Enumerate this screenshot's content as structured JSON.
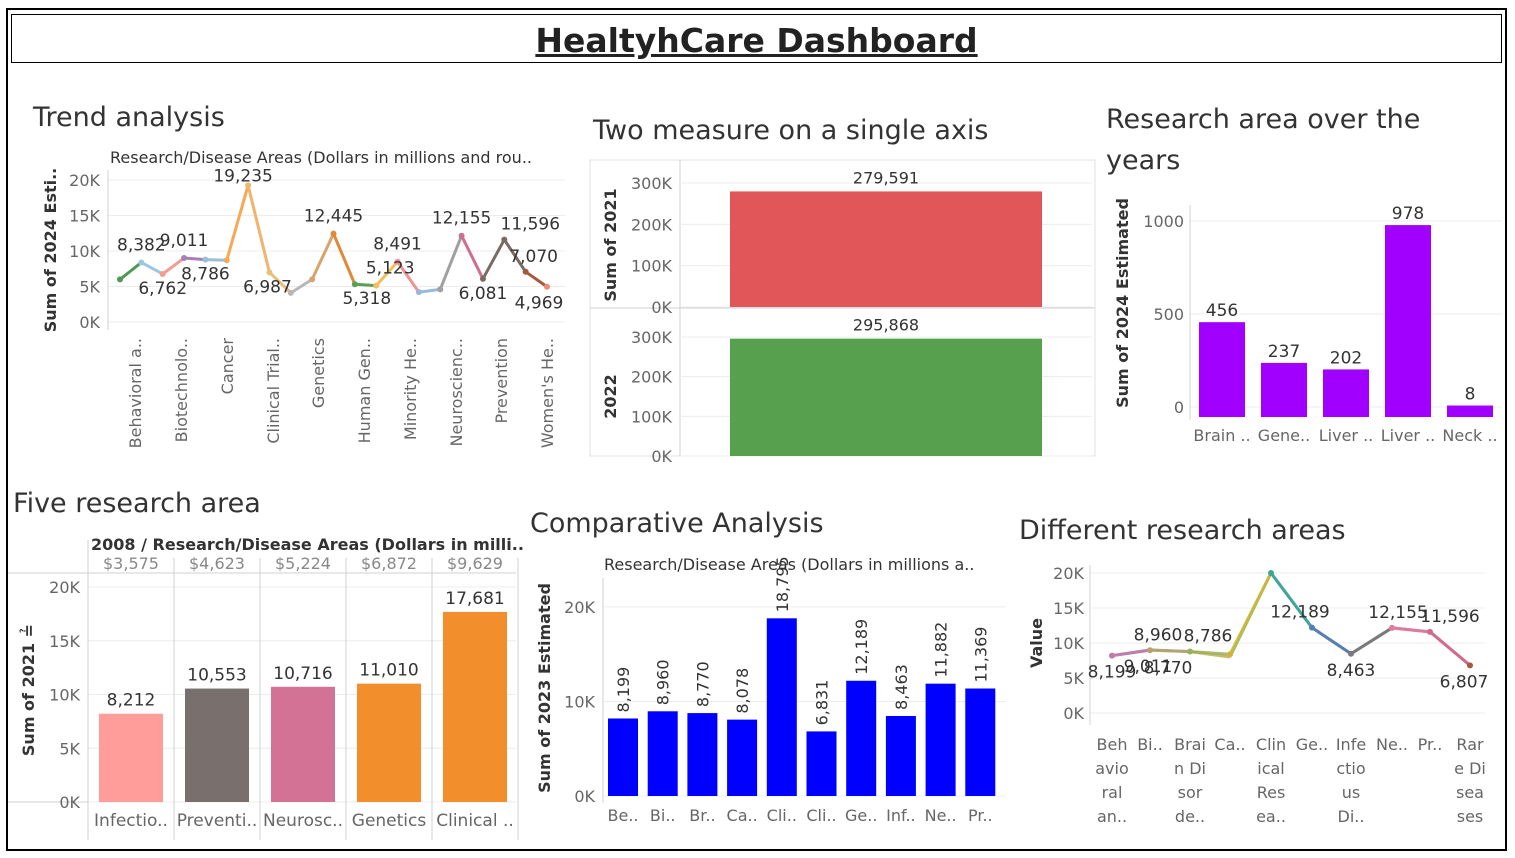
{
  "dashboard": {
    "title": "HealtyhCare Dashboard"
  },
  "panels": {
    "trend": {
      "title": "Trend analysis"
    },
    "two_measure": {
      "title": "Two measure on a single axis"
    },
    "research_years": {
      "title_line1": "Research area over the",
      "title_line2": "years"
    },
    "five_research": {
      "title": "Five research area"
    },
    "comparative": {
      "title": "Comparative Analysis"
    },
    "different": {
      "title": "Different research areas"
    }
  },
  "chart_data": [
    {
      "id": "trend",
      "type": "line",
      "header": "Research/Disease Areas   (Dollars in millions and rou..",
      "ylabel": "Sum of 2024 Esti..",
      "yticks": [
        "20K",
        "15K",
        "10K",
        "5K",
        "0K"
      ],
      "ylim": [
        0,
        20000
      ],
      "x_tick_labels": [
        "Behavioral a..",
        "Biotechnolo..",
        "Cancer",
        "Clinical Trial..",
        "Genetics",
        "Human Gen..",
        "Minority He..",
        "Neuroscienc..",
        "Prevention",
        "Women's He.."
      ],
      "x": [
        0,
        1,
        2,
        3,
        4,
        5,
        6,
        7,
        8,
        9,
        10,
        11,
        12,
        13,
        14,
        15,
        16,
        17,
        18,
        19,
        20
      ],
      "values": [
        6000,
        8382,
        6762,
        9011,
        8786,
        8700,
        19235,
        6987,
        4100,
        6000,
        12445,
        5318,
        5123,
        8491,
        4200,
        4600,
        12155,
        6081,
        11596,
        7070,
        4969
      ],
      "labels": [
        "",
        "8,382",
        "6,762",
        "9,011",
        "8,786",
        "",
        "19,235",
        "6,987",
        "",
        "",
        "12,445",
        "5,318",
        "5,123",
        "8,491",
        "",
        "",
        "12,155",
        "6,081",
        "11,596",
        "7,070",
        "4,969"
      ],
      "colors": [
        "#4e9a55",
        "#9cc7e0",
        "#f29c92",
        "#a77fb6",
        "#9dbfd6",
        "#f5a957",
        "#f2b36c",
        "#e8c07a",
        "#b8b8b8",
        "#d7a56a",
        "#e0893a",
        "#5aa052",
        "#f4be5a",
        "#f09090",
        "#9ab8d8",
        "#a0a0a0",
        "#cf6f8e",
        "#7a6a64",
        "#7a6a64",
        "#a8563c",
        "#f08a72"
      ]
    },
    {
      "id": "two_measure",
      "type": "bar",
      "rows": [
        {
          "ylabel": "Sum of 2021",
          "value": 279591,
          "label": "279,591",
          "color": "#e05659"
        },
        {
          "ylabel": "2022",
          "value": 295868,
          "label": "295,868",
          "color": "#56a04e"
        }
      ],
      "yticks": [
        "300K",
        "200K",
        "100K",
        "0K"
      ],
      "ylim": [
        0,
        300000
      ]
    },
    {
      "id": "research_years",
      "type": "bar",
      "ylabel": "Sum of 2024 Estimated",
      "yticks": [
        "1000",
        "500",
        "0"
      ],
      "ylim": [
        0,
        1000
      ],
      "categories": [
        "Brain ..",
        "Gene..",
        "Liver ..",
        "Liver ..",
        "Neck .."
      ],
      "values": [
        456,
        237,
        202,
        978,
        8
      ],
      "labels": [
        "456",
        "237",
        "202",
        "978",
        "8"
      ],
      "color": "#a100ff"
    },
    {
      "id": "five_research",
      "type": "bar",
      "header": "2008  /  Research/Disease Areas   (Dollars in milli..",
      "column_values": [
        "$3,575",
        "$4,623",
        "$5,224",
        "$6,872",
        "$9,629"
      ],
      "ylabel": "Sum of 2021 ≟",
      "yticks": [
        "20K",
        "15K",
        "10K",
        "5K",
        "0K"
      ],
      "ylim": [
        0,
        20000
      ],
      "categories": [
        "Infectio..",
        "Preventi..",
        "Neurosc..",
        "Genetics",
        "Clinical .."
      ],
      "values": [
        8212,
        10553,
        10716,
        11010,
        17681
      ],
      "labels": [
        "8,212",
        "10,553",
        "10,716",
        "11,010",
        "17,681"
      ],
      "colors": [
        "#ff9d9a",
        "#79706e",
        "#d37295",
        "#f28e2b",
        "#f28e2b"
      ]
    },
    {
      "id": "comparative",
      "type": "bar",
      "header": "Research/Disease Areas   (Dollars in millions a..",
      "ylabel": "Sum of 2023 Estimated",
      "yticks": [
        "20K",
        "10K",
        "0K"
      ],
      "ylim": [
        0,
        22000
      ],
      "categories": [
        "Be..",
        "Bi..",
        "Br..",
        "Ca..",
        "Cli..",
        "Cli..",
        "Ge..",
        "Inf..",
        "Ne..",
        "Pr.."
      ],
      "values": [
        8199,
        8960,
        8770,
        8078,
        18795,
        6831,
        12189,
        8463,
        11882,
        11369
      ],
      "labels": [
        "8,199",
        "8,960",
        "8,770",
        "8,078",
        "18,795",
        "6,831",
        "12,189",
        "8,463",
        "11,882",
        "11,369"
      ],
      "color": "#0000ff"
    },
    {
      "id": "different",
      "type": "line",
      "ylabel": "Value",
      "yticks": [
        "20K",
        "15K",
        "10K",
        "5K",
        "0K"
      ],
      "ylim": [
        0,
        20000
      ],
      "x_tick_labels": [
        [
          "Beh",
          "avio",
          "ral",
          "an.."
        ],
        [
          "Bi.."
        ],
        [
          "Brai",
          "n Di",
          "sor",
          "de.."
        ],
        [
          "Ca.."
        ],
        [
          "Clin",
          "ical",
          "Res",
          "ea.."
        ],
        [
          "Ge.."
        ],
        [
          "Infe",
          "ctio",
          "us",
          "Di.."
        ],
        [
          "Ne.."
        ],
        [
          "Pr.."
        ],
        [
          "Rar",
          "e Di",
          "sea",
          "ses"
        ]
      ],
      "values": [
        8199,
        8960,
        8786,
        8400,
        20000,
        12189,
        8463,
        12155,
        11596,
        6807
      ],
      "secondary_values": [
        8199,
        9011,
        8770,
        8000,
        20000,
        12189,
        8463,
        12155,
        11596,
        6807
      ],
      "labels": [
        "8,199",
        "8,960",
        "8,786",
        "",
        "",
        "12,189",
        "8,463",
        "12,155",
        "11,596",
        "6,807"
      ],
      "secondary_labels": [
        "",
        "9,011",
        "8,770",
        "",
        "",
        "",
        "",
        "",
        "",
        ""
      ]
    }
  ]
}
